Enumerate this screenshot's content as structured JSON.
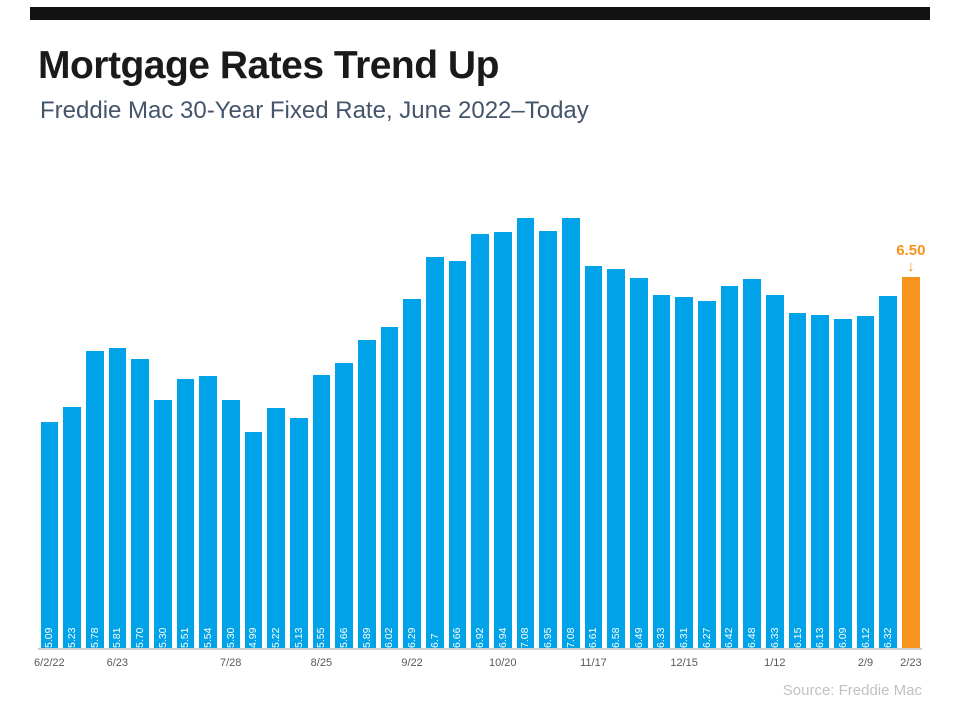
{
  "header": {
    "title": "Mortgage Rates Trend Up",
    "subtitle": "Freddie Mac 30-Year Fixed Rate, June 2022–Today"
  },
  "chart_data": {
    "type": "bar",
    "title": "Mortgage Rates Trend Up",
    "subtitle": "Freddie Mac 30-Year Fixed Rate, June 2022–Today",
    "series": [
      {
        "name": "Freddie Mac 30-Year Fixed Rate",
        "values": [
          5.09,
          5.23,
          5.78,
          5.81,
          5.7,
          5.3,
          5.51,
          5.54,
          5.3,
          4.99,
          5.22,
          5.13,
          5.55,
          5.66,
          5.89,
          6.02,
          6.29,
          6.7,
          6.66,
          6.92,
          6.94,
          7.08,
          6.95,
          7.08,
          6.61,
          6.58,
          6.49,
          6.33,
          6.31,
          6.27,
          6.42,
          6.48,
          6.33,
          6.15,
          6.13,
          6.09,
          6.12,
          6.32,
          6.5
        ]
      }
    ],
    "bar_labels": [
      "5.09",
      "5.23",
      "5.78",
      "5.81",
      "5.70",
      "5.30",
      "5.51",
      "5.54",
      "5.30",
      "4.99",
      "5.22",
      "5.13",
      "5.55",
      "5.66",
      "5.89",
      "6.02",
      "6.29",
      "6.7",
      "6.66",
      "6.92",
      "6.94",
      "7.08",
      "6.95",
      "7.08",
      "6.61",
      "6.58",
      "6.49",
      "6.33",
      "6.31",
      "6.27",
      "6.42",
      "6.48",
      "6.33",
      "6.15",
      "6.13",
      "6.09",
      "6.12",
      "6.32",
      ""
    ],
    "x_tick_labels": [
      {
        "index": 0,
        "label": "6/2/22"
      },
      {
        "index": 3,
        "label": "6/23"
      },
      {
        "index": 8,
        "label": "7/28"
      },
      {
        "index": 12,
        "label": "8/25"
      },
      {
        "index": 16,
        "label": "9/22"
      },
      {
        "index": 20,
        "label": "10/20"
      },
      {
        "index": 24,
        "label": "11/17"
      },
      {
        "index": 28,
        "label": "12/15"
      },
      {
        "index": 32,
        "label": "1/12"
      },
      {
        "index": 36,
        "label": "2/9"
      },
      {
        "index": 38,
        "label": "2/23"
      }
    ],
    "highlight": {
      "index": 38,
      "label": "6.50",
      "color": "#f7941d",
      "arrow": "↓"
    },
    "bar_color": "#00a2e8",
    "bar_value_label_color": "#ffffff",
    "axis_label_color": "#595959",
    "value_scale": {
      "min": 2.88,
      "max": 7.08
    },
    "y_axis_visible": false,
    "grid": false,
    "legend": "none",
    "source": "Source: Freddie Mac"
  }
}
